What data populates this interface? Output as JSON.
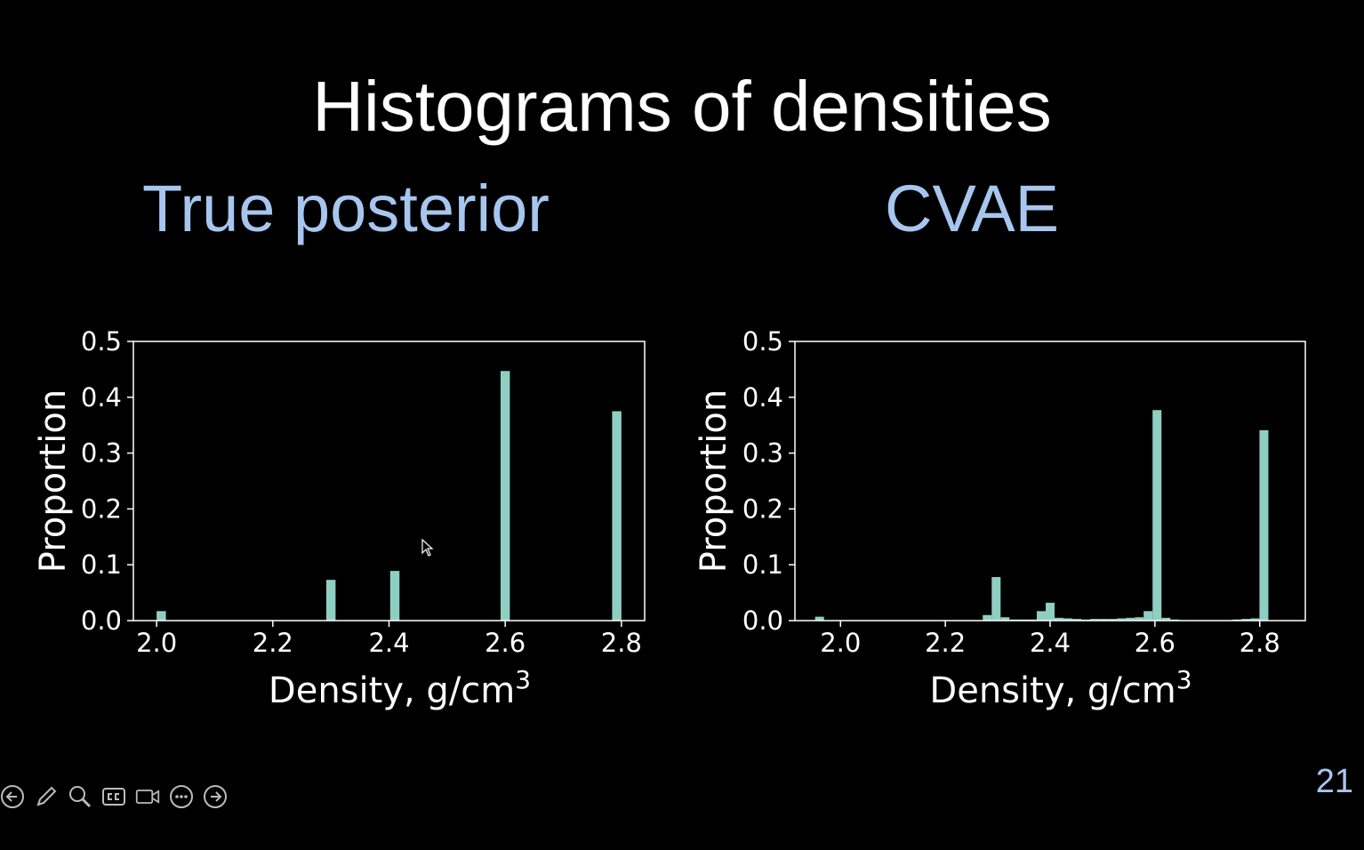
{
  "slide": {
    "title": "Histograms of densities",
    "subtitle_left": "True posterior",
    "subtitle_right": "CVAE",
    "page_number": "21"
  },
  "colors": {
    "background": "#000000",
    "subtitle": "#a7c6ef",
    "bar": "#8fcfc3",
    "axis": "#ffffff"
  },
  "toolbar": {
    "icons": [
      "back-arrow-icon",
      "pen-icon",
      "zoom-icon",
      "captions-icon",
      "video-icon",
      "more-icon",
      "forward-arrow-icon"
    ]
  },
  "chart_data": [
    {
      "type": "bar",
      "xlabel": "Density, g/cm",
      "xlabel_superscript": "3",
      "ylabel": "Proportion",
      "xlim": [
        1.96,
        2.84
      ],
      "ylim": [
        0.0,
        0.5
      ],
      "xticks": [
        "2.0",
        "2.2",
        "2.4",
        "2.6",
        "2.8"
      ],
      "xtick_values": [
        2.0,
        2.2,
        2.4,
        2.6,
        2.8
      ],
      "yticks": [
        "0.0",
        "0.1",
        "0.2",
        "0.3",
        "0.4",
        "0.5"
      ],
      "ytick_values": [
        0.0,
        0.1,
        0.2,
        0.3,
        0.4,
        0.5
      ],
      "bar_width": 0.016,
      "x": [
        2.008,
        2.3,
        2.41,
        2.6,
        2.792
      ],
      "values": [
        0.017,
        0.073,
        0.089,
        0.447,
        0.375
      ],
      "grid": false
    },
    {
      "type": "bar",
      "xlabel": "Density, g/cm",
      "xlabel_superscript": "3",
      "ylabel": "Proportion",
      "xlim": [
        1.913,
        2.887
      ],
      "ylim": [
        0.0,
        0.5
      ],
      "xticks": [
        "2.0",
        "2.2",
        "2.4",
        "2.6",
        "2.8"
      ],
      "xtick_values": [
        2.0,
        2.2,
        2.4,
        2.6,
        2.8
      ],
      "yticks": [
        "0.0",
        "0.1",
        "0.2",
        "0.3",
        "0.4",
        "0.5"
      ],
      "ytick_values": [
        0.0,
        0.1,
        0.2,
        0.3,
        0.4,
        0.5
      ],
      "bar_width": 0.017,
      "x": [
        1.96,
        2.28,
        2.297,
        2.314,
        2.332,
        2.349,
        2.366,
        2.383,
        2.4,
        2.417,
        2.434,
        2.451,
        2.468,
        2.485,
        2.502,
        2.519,
        2.536,
        2.553,
        2.57,
        2.587,
        2.604,
        2.621,
        2.638,
        2.757,
        2.774,
        2.791,
        2.808
      ],
      "values": [
        0.007,
        0.01,
        0.078,
        0.006,
        0.002,
        0.002,
        0.002,
        0.017,
        0.032,
        0.005,
        0.004,
        0.003,
        0.002,
        0.003,
        0.003,
        0.003,
        0.004,
        0.005,
        0.006,
        0.017,
        0.377,
        0.005,
        0.002,
        0.002,
        0.003,
        0.004,
        0.341
      ],
      "grid": false
    }
  ]
}
